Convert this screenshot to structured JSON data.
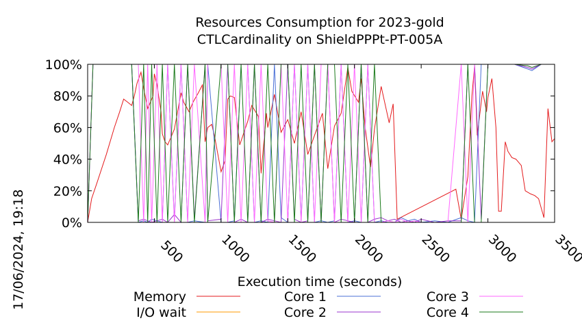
{
  "chart_data": {
    "type": "line",
    "title": [
      "Resources Consumption for 2023-gold",
      "CTLCardinality on ShieldPPPt-PT-005A"
    ],
    "xlabel": "Execution time (seconds)",
    "ylabel": "",
    "timestamp": "17/06/2024, 19:18",
    "xlim": [
      0,
      3500
    ],
    "ylim": [
      0,
      100
    ],
    "x_ticks": [
      {
        "value": 500,
        "label": "500"
      },
      {
        "value": 1000,
        "label": "1000"
      },
      {
        "value": 1500,
        "label": "1500"
      },
      {
        "value": 2000,
        "label": "2000"
      },
      {
        "value": 2500,
        "label": "2500"
      },
      {
        "value": 3000,
        "label": "3000"
      },
      {
        "value": 3500,
        "label": "3500"
      }
    ],
    "y_ticks": [
      {
        "value": 0,
        "label": "0%"
      },
      {
        "value": 20,
        "label": "20%"
      },
      {
        "value": 40,
        "label": "40%"
      },
      {
        "value": 60,
        "label": "60%"
      },
      {
        "value": 80,
        "label": "80%"
      },
      {
        "value": 100,
        "label": "100%"
      }
    ],
    "legend": {
      "placement": "bottom",
      "columns": 3
    },
    "series": [
      {
        "name": "Memory",
        "color": "#e41a1c",
        "x": [
          0,
          30,
          70,
          140,
          200,
          240,
          270,
          300,
          330,
          350,
          370,
          400,
          420,
          450,
          490,
          500,
          520,
          550,
          560,
          580,
          600,
          650,
          700,
          720,
          760,
          790,
          830,
          860,
          880,
          900,
          930,
          950,
          1000,
          1030,
          1050,
          1070,
          1100,
          1140,
          1200,
          1230,
          1280,
          1300,
          1340,
          1350,
          1400,
          1450,
          1500,
          1550,
          1600,
          1650,
          1700,
          1760,
          1800,
          1850,
          1900,
          1950,
          1980,
          2030,
          2050,
          2080,
          2120,
          2150,
          2200,
          2260,
          2290,
          2320,
          2760,
          2800,
          2850,
          2880,
          2900,
          2920,
          2960,
          2990,
          3000,
          3030,
          3060,
          3080,
          3100,
          3130,
          3150,
          3180,
          3210,
          3250,
          3280,
          3320,
          3350,
          3380,
          3420,
          3450,
          3480,
          3500
        ],
        "y": [
          0,
          15,
          25,
          43,
          60,
          70,
          78,
          76,
          74,
          80,
          88,
          95,
          85,
          72,
          80,
          94,
          87,
          70,
          56,
          51,
          49,
          59,
          82,
          76,
          70,
          76,
          82,
          87,
          51,
          60,
          62,
          55,
          32,
          39,
          78,
          80,
          79,
          49,
          64,
          74,
          67,
          31,
          69,
          60,
          81,
          57,
          65,
          50,
          70,
          43,
          55,
          69,
          34,
          61,
          69,
          98,
          83,
          76,
          91,
          60,
          35,
          59,
          86,
          63,
          75,
          2,
          21,
          2,
          29,
          80,
          99,
          55,
          83,
          70,
          79,
          91,
          60,
          7,
          7,
          51,
          45,
          41,
          40,
          36,
          20,
          18,
          17,
          15,
          3,
          72,
          51,
          53
        ]
      },
      {
        "name": "I/O wait",
        "color": "#ff9900",
        "x": [
          0,
          3500
        ],
        "y": [
          0,
          0
        ]
      },
      {
        "name": "Core 1",
        "color": "#4a6fd6",
        "x": [
          0,
          40,
          330,
          380,
          420,
          450,
          480,
          520,
          560,
          600,
          650,
          700,
          750,
          800,
          880,
          900,
          1000,
          1050,
          1100,
          1150,
          1200,
          1250,
          1300,
          1350,
          1400,
          1450,
          1500,
          1550,
          1600,
          1650,
          1700,
          1750,
          1800,
          1850,
          1900,
          1950,
          2000,
          2050,
          2100,
          2150,
          2200,
          2250,
          2300,
          2350,
          2400,
          2450,
          2500,
          2600,
          2700,
          2800,
          2850,
          2900,
          2950,
          3000,
          3050,
          3100,
          3200,
          3300,
          3330,
          3400,
          3500
        ],
        "y": [
          0,
          100,
          100,
          0,
          1,
          0,
          2,
          1,
          0,
          100,
          1,
          100,
          0,
          1,
          0,
          100,
          0,
          0,
          1,
          100,
          100,
          0,
          1,
          0,
          100,
          3,
          0,
          100,
          1,
          100,
          0,
          1,
          0,
          1,
          100,
          0,
          1,
          0,
          100,
          0,
          1,
          0,
          0,
          3,
          1,
          2,
          0,
          1,
          0,
          3,
          1,
          0,
          100,
          100,
          100,
          100,
          100,
          97,
          96,
          100,
          100
        ]
      },
      {
        "name": "Core 2",
        "color": "#9933cc",
        "x": [
          0,
          40,
          330,
          380,
          420,
          450,
          480,
          520,
          560,
          600,
          650,
          700,
          750,
          800,
          880,
          900,
          1000,
          1050,
          1100,
          1150,
          1200,
          1250,
          1300,
          1350,
          1400,
          1450,
          1500,
          1550,
          1600,
          1650,
          1700,
          1750,
          1800,
          1850,
          1900,
          1950,
          2000,
          2050,
          2100,
          2150,
          2200,
          2250,
          2300,
          2350,
          2400,
          2450,
          2500,
          2600,
          2700,
          2800,
          2850,
          2900,
          2950,
          3000,
          3050,
          3100,
          3200,
          3300,
          3330,
          3400,
          3500
        ],
        "y": [
          0,
          100,
          100,
          1,
          2,
          1,
          0,
          1,
          2,
          0,
          5,
          0,
          100,
          2,
          100,
          1,
          2,
          100,
          0,
          2,
          0,
          100,
          0,
          2,
          1,
          0,
          100,
          2,
          0,
          1,
          100,
          0,
          100,
          0,
          2,
          1,
          0,
          100,
          0,
          2,
          3,
          1,
          2,
          0,
          1,
          0,
          2,
          0,
          1,
          1,
          100,
          100,
          2,
          100,
          100,
          100,
          100,
          98,
          97,
          100,
          100
        ]
      },
      {
        "name": "Core 3",
        "color": "#ff66ff",
        "x": [
          0,
          40,
          330,
          380,
          420,
          450,
          480,
          520,
          560,
          600,
          650,
          700,
          750,
          800,
          880,
          900,
          1000,
          1050,
          1100,
          1150,
          1200,
          1250,
          1300,
          1350,
          1400,
          1450,
          1500,
          1550,
          1600,
          1650,
          1700,
          1750,
          1800,
          1850,
          1900,
          1950,
          2000,
          2050,
          2100,
          2150,
          2200,
          2250,
          2300,
          2350,
          2400,
          2450,
          2500,
          2600,
          2700,
          2800,
          2850,
          2900,
          2950,
          3000,
          3050,
          3100,
          3200,
          3300,
          3330,
          3400,
          3500
        ],
        "y": [
          0,
          100,
          100,
          100,
          0,
          100,
          0,
          100,
          0,
          100,
          0,
          100,
          0,
          100,
          0,
          100,
          100,
          0,
          100,
          0,
          100,
          0,
          100,
          1,
          0,
          100,
          0,
          100,
          0,
          100,
          0,
          100,
          100,
          0,
          100,
          0,
          100,
          0,
          100,
          0,
          0,
          1,
          0,
          2,
          0,
          1,
          0,
          0,
          0,
          100,
          0,
          100,
          100,
          100,
          100,
          100,
          100,
          99,
          98,
          100,
          100
        ]
      },
      {
        "name": "Core 4",
        "color": "#1a7a1a",
        "x": [
          0,
          40,
          330,
          380,
          420,
          450,
          480,
          520,
          560,
          600,
          650,
          700,
          750,
          800,
          880,
          900,
          1000,
          1050,
          1100,
          1150,
          1200,
          1250,
          1300,
          1350,
          1400,
          1450,
          1500,
          1550,
          1600,
          1650,
          1700,
          1750,
          1800,
          1850,
          1900,
          1950,
          2000,
          2050,
          2100,
          2150,
          2200,
          2250,
          2300,
          2350,
          2400,
          2450,
          2500,
          2600,
          2700,
          2800,
          2850,
          2900,
          2950,
          3000,
          3050,
          3100,
          3200,
          3300,
          3330,
          3400,
          3500
        ],
        "y": [
          0,
          100,
          100,
          0,
          100,
          0,
          100,
          0,
          100,
          0,
          100,
          0,
          100,
          0,
          100,
          0,
          100,
          100,
          0,
          100,
          0,
          100,
          0,
          100,
          0,
          100,
          100,
          0,
          100,
          0,
          100,
          0,
          100,
          100,
          0,
          100,
          0,
          100,
          0,
          100,
          0,
          0,
          0,
          0,
          0,
          0,
          0,
          0,
          0,
          0,
          100,
          0,
          0,
          100,
          100,
          100,
          100,
          99,
          98,
          100,
          100
        ]
      }
    ]
  }
}
